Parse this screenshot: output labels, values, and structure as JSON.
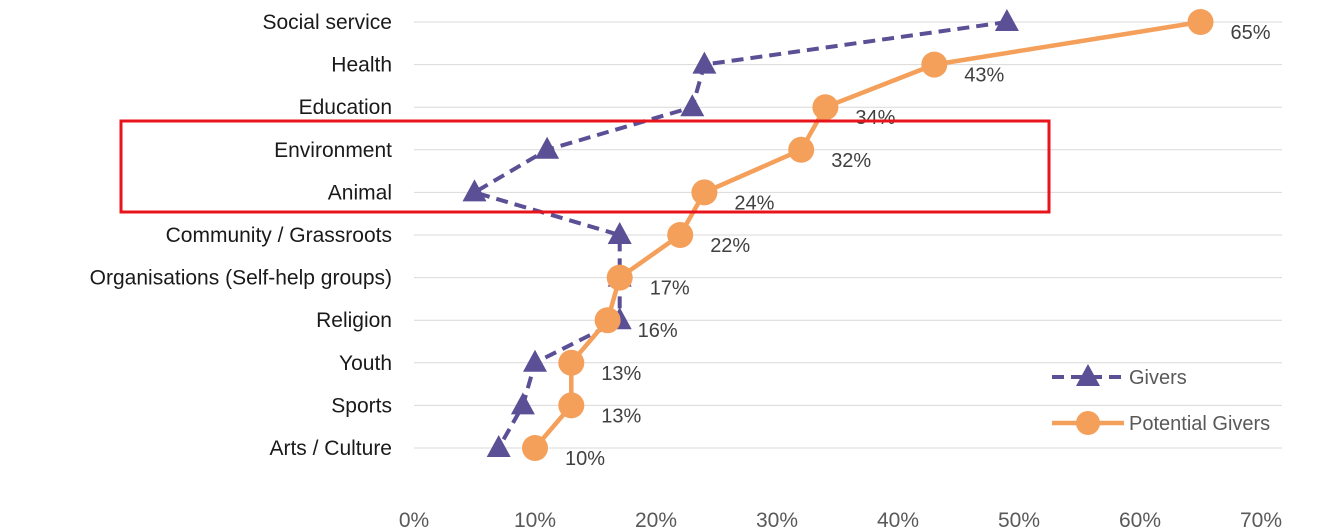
{
  "chart_data": {
    "type": "line",
    "orientation": "horizontal-categories",
    "categories": [
      "Social service",
      "Health",
      "Education",
      "Environment",
      "Animal",
      "Community / Grassroots",
      "Organisations (Self-help groups)",
      "Religion",
      "Youth",
      "Sports",
      "Arts / Culture"
    ],
    "series": [
      {
        "name": "Givers",
        "values": [
          49,
          24,
          23,
          11,
          5,
          17,
          17,
          17,
          10,
          9,
          7
        ],
        "color": "#5b4f96",
        "style": "dashed",
        "marker": "triangle"
      },
      {
        "name": "Potential Givers",
        "values": [
          65,
          43,
          34,
          32,
          24,
          22,
          17,
          16,
          13,
          13,
          10
        ],
        "color": "#f4a05a",
        "style": "solid",
        "marker": "circle"
      }
    ],
    "data_labels": [
      "65%",
      "43%",
      "34%",
      "32%",
      "24%",
      "22%",
      "17%",
      "16%",
      "13%",
      "13%",
      "10%"
    ],
    "x_ticks": [
      "0%",
      "10%",
      "20%",
      "30%",
      "40%",
      "50%",
      "60%",
      "70%"
    ],
    "xlim": [
      0,
      70
    ],
    "grid": true,
    "legend": "bottom-right",
    "highlight": {
      "categories": [
        "Environment",
        "Animal"
      ],
      "color": "#e8141b"
    }
  }
}
